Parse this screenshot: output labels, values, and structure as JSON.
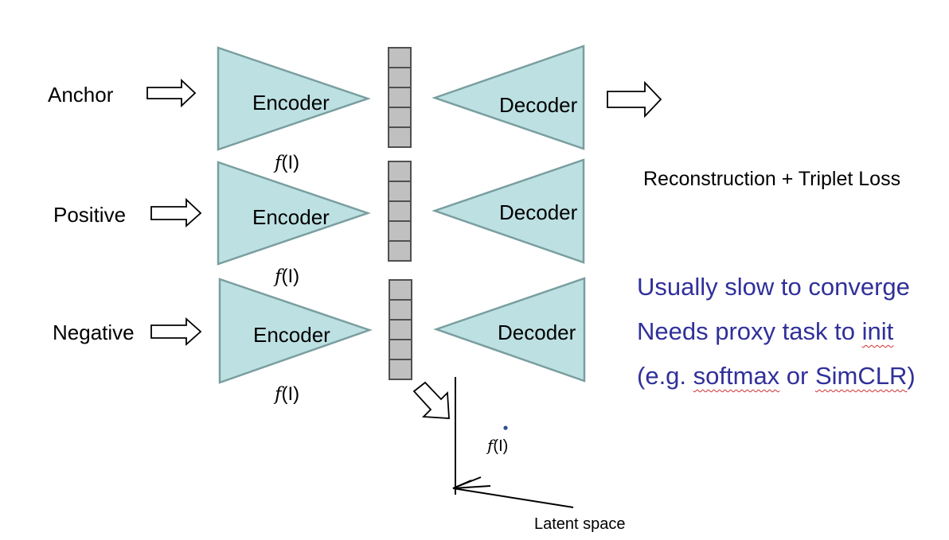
{
  "rows": [
    {
      "input": "Anchor",
      "encoder": "Encoder",
      "decoder": "Decoder",
      "feature": {
        "f": "f",
        "arg": "(I)"
      }
    },
    {
      "input": "Positive",
      "encoder": "Encoder",
      "decoder": "Decoder",
      "feature": {
        "f": "f",
        "arg": "(I)"
      }
    },
    {
      "input": "Negative",
      "encoder": "Encoder",
      "decoder": "Decoder",
      "feature": {
        "f": "f",
        "arg": "(I)"
      }
    }
  ],
  "loss_label": "Reconstruction + Triplet Loss",
  "notes": {
    "line1": "Usually slow to converge",
    "line2_pre": "Needs proxy task to ",
    "line2_squig": "init",
    "line3_pre": "(e.g. ",
    "line3_squig1": "softmax",
    "line3_mid": " or ",
    "line3_squig2": "SimCLR",
    "line3_post": ")"
  },
  "latent": {
    "label": "Latent space",
    "point_label": {
      "f": "f",
      "arg": "(I)"
    }
  },
  "colors": {
    "block_fill": "#bde0e2",
    "block_stroke": "#7a9ea0",
    "cell_fill": "#c0c0c0",
    "cell_stroke": "#505050",
    "note_text": "#30309a",
    "point": "#2f4f8f"
  }
}
